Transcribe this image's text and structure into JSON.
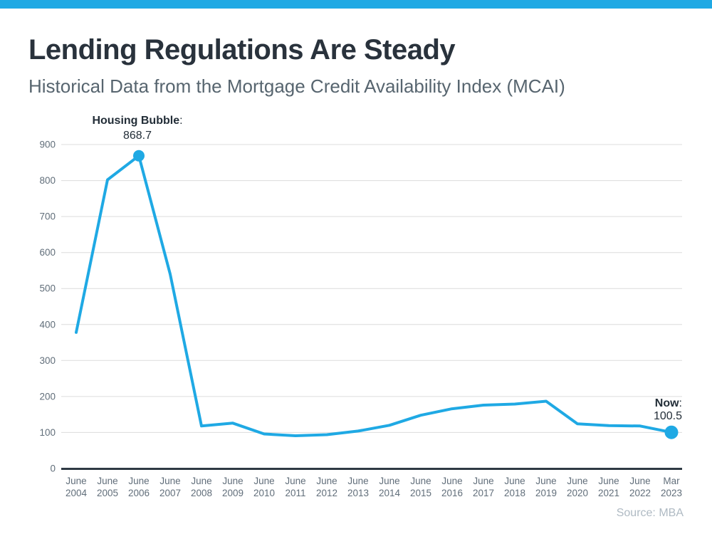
{
  "header": {
    "title": "Lending Regulations Are Steady",
    "subtitle": "Historical Data from the Mortgage Credit Availability Index (MCAI)"
  },
  "annotations": {
    "peak": {
      "label": "Housing Bubble",
      "colon": ":",
      "value": "868.7"
    },
    "now": {
      "label": "Now",
      "colon": ":",
      "value": "100.5"
    }
  },
  "footer": {
    "source": "Source: MBA"
  },
  "colors": {
    "accent_blue": "#1FA9E4",
    "title_text": "#29323C",
    "subtitle_text": "#57656F",
    "tick_text": "#616E7A",
    "gridline": "#DCDCDC",
    "axis_line": "#2F3A44",
    "annotation_text": "#232E38",
    "source_text": "#AFBAC3"
  },
  "chart_data": {
    "type": "line",
    "title": "Lending Regulations Are Steady",
    "subtitle": "Historical Data from the Mortgage Credit Availability Index (MCAI)",
    "series_name": "Mortgage Credit Availability Index (MCAI)",
    "x_labels": [
      [
        "June",
        "2004"
      ],
      [
        "June",
        "2005"
      ],
      [
        "June",
        "2006"
      ],
      [
        "June",
        "2007"
      ],
      [
        "June",
        "2008"
      ],
      [
        "June",
        "2009"
      ],
      [
        "June",
        "2010"
      ],
      [
        "June",
        "2011"
      ],
      [
        "June",
        "2012"
      ],
      [
        "June",
        "2013"
      ],
      [
        "June",
        "2014"
      ],
      [
        "June",
        "2015"
      ],
      [
        "June",
        "2016"
      ],
      [
        "June",
        "2017"
      ],
      [
        "June",
        "2018"
      ],
      [
        "June",
        "2019"
      ],
      [
        "June",
        "2020"
      ],
      [
        "June",
        "2021"
      ],
      [
        "June",
        "2022"
      ],
      [
        "Mar",
        "2023"
      ]
    ],
    "values": [
      378,
      802,
      868.7,
      540,
      118,
      126,
      96,
      91,
      94,
      104,
      120,
      148,
      166,
      176,
      179,
      187,
      124,
      119,
      118,
      100.5
    ],
    "ylim": [
      0,
      900
    ],
    "yticks": [
      0,
      100,
      200,
      300,
      400,
      500,
      600,
      700,
      800,
      900
    ],
    "grid": true,
    "legend": false,
    "line_color": "#1FA9E4",
    "marker_points": [
      {
        "index": 2,
        "value": 868.7,
        "radius": 8,
        "annotation": "Housing Bubble: 868.7"
      },
      {
        "index": 19,
        "value": 100.5,
        "radius": 9.5,
        "annotation": "Now: 100.5"
      }
    ],
    "source": "Source: MBA"
  }
}
